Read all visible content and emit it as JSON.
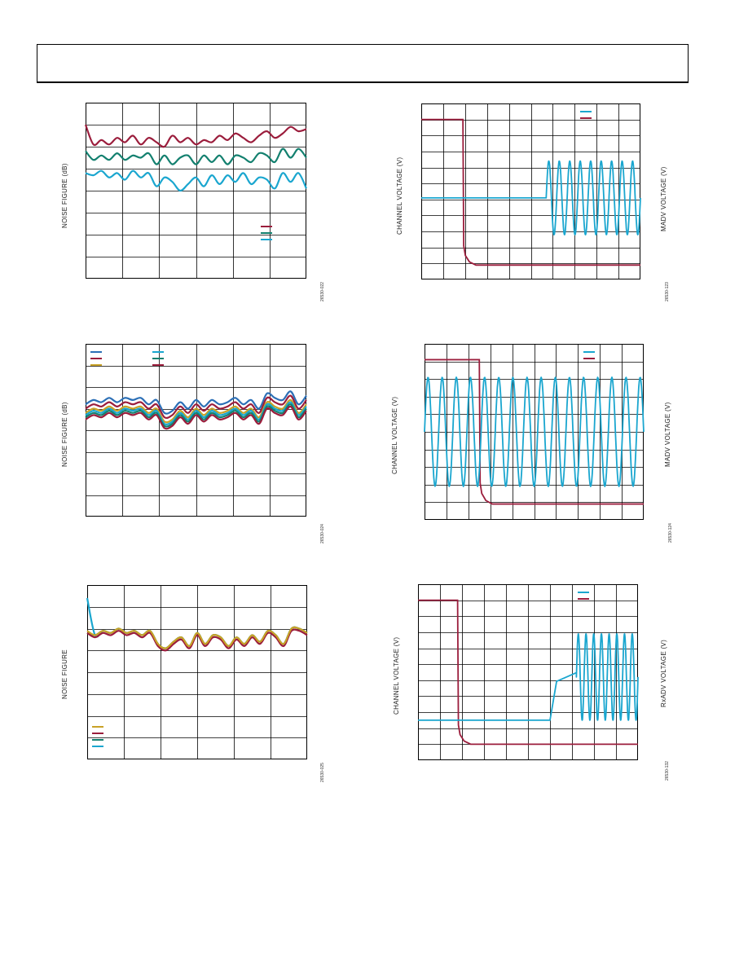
{
  "colors": {
    "maroon": "#9b1d3c",
    "teal": "#13806f",
    "cyan": "#1aa6cf",
    "blue": "#2b6fb6",
    "orange": "#c9a227",
    "grid": "#000000"
  },
  "page": {
    "header": ""
  },
  "chart_data": [
    {
      "id": "nf-top",
      "type": "line",
      "ylabel": "NOISE FIGURE (dB)",
      "figure_id": "26530-022",
      "grid": true,
      "gridlines": {
        "x": 6,
        "y": 8
      },
      "ylim": [
        0,
        8
      ],
      "xlim": [
        0,
        6
      ],
      "legend_placement": "bottom-right",
      "series": [
        {
          "color": "maroon",
          "values": [
            7.0,
            6.1,
            6.3,
            6.1,
            6.4,
            6.2,
            6.5,
            6.1,
            6.4,
            6.2,
            6.0,
            6.5,
            6.2,
            6.4,
            6.1,
            6.3,
            6.2,
            6.5,
            6.3,
            6.6,
            6.4,
            6.2,
            6.5,
            6.7,
            6.4,
            6.6,
            6.9,
            6.7,
            6.8
          ]
        },
        {
          "color": "teal",
          "values": [
            5.8,
            5.4,
            5.6,
            5.4,
            5.7,
            5.4,
            5.6,
            5.5,
            5.7,
            5.2,
            5.6,
            5.2,
            5.5,
            5.6,
            5.2,
            5.6,
            5.3,
            5.6,
            5.2,
            5.6,
            5.5,
            5.3,
            5.7,
            5.6,
            5.3,
            5.9,
            5.5,
            5.9,
            5.5
          ]
        },
        {
          "color": "cyan",
          "values": [
            4.8,
            4.7,
            4.9,
            4.6,
            4.8,
            4.5,
            4.9,
            4.6,
            4.8,
            4.2,
            4.6,
            4.4,
            4.0,
            4.3,
            4.6,
            4.2,
            4.7,
            4.3,
            4.7,
            4.4,
            4.8,
            4.3,
            4.6,
            4.5,
            4.1,
            4.8,
            4.4,
            4.8,
            4.1
          ]
        }
      ]
    },
    {
      "id": "nf-middle",
      "type": "line",
      "ylabel": "NOISE FIGURE (dB)",
      "figure_id": "26530-024",
      "grid": true,
      "gridlines": {
        "x": 6,
        "y": 8
      },
      "ylim": [
        0,
        8
      ],
      "xlim": [
        0,
        6
      ],
      "legend_placement": "top-left",
      "series": [
        {
          "color": "blue",
          "values": [
            5.2,
            5.4,
            5.3,
            5.5,
            5.3,
            5.5,
            5.4,
            5.5,
            5.2,
            5.4,
            4.8,
            4.9,
            5.3,
            5.0,
            5.4,
            5.1,
            5.4,
            5.2,
            5.3,
            5.5,
            5.2,
            5.4,
            5.0,
            5.7,
            5.5,
            5.4,
            5.8,
            5.2,
            5.6
          ]
        },
        {
          "color": "maroon",
          "values": [
            5.0,
            5.2,
            5.1,
            5.3,
            5.1,
            5.3,
            5.2,
            5.3,
            5.0,
            5.2,
            4.6,
            4.7,
            5.1,
            4.8,
            5.2,
            4.9,
            5.2,
            5.0,
            5.1,
            5.3,
            5.0,
            5.2,
            4.8,
            5.5,
            5.3,
            5.2,
            5.6,
            5.0,
            5.4
          ]
        },
        {
          "color": "orange",
          "values": [
            4.8,
            5.0,
            4.9,
            5.1,
            4.9,
            5.1,
            5.0,
            5.1,
            4.8,
            5.0,
            4.4,
            4.5,
            4.9,
            4.6,
            5.0,
            4.7,
            5.0,
            4.8,
            4.9,
            5.1,
            4.8,
            5.0,
            4.6,
            5.3,
            5.1,
            5.0,
            5.4,
            4.8,
            5.2
          ]
        },
        {
          "color": "cyan",
          "values": [
            4.7,
            4.9,
            4.8,
            5.0,
            4.8,
            5.0,
            4.9,
            5.0,
            4.7,
            4.9,
            4.3,
            4.4,
            4.8,
            4.5,
            4.9,
            4.6,
            4.9,
            4.7,
            4.8,
            5.0,
            4.7,
            4.9,
            4.5,
            5.2,
            5.0,
            4.9,
            5.3,
            4.7,
            5.1
          ]
        },
        {
          "color": "teal",
          "values": [
            4.6,
            4.8,
            4.7,
            4.9,
            4.7,
            4.9,
            4.8,
            4.9,
            4.6,
            4.8,
            4.2,
            4.3,
            4.7,
            4.4,
            4.8,
            4.5,
            4.8,
            4.6,
            4.7,
            4.9,
            4.6,
            4.8,
            4.4,
            5.1,
            4.9,
            4.8,
            5.2,
            4.6,
            5.0
          ]
        },
        {
          "color": "maroon",
          "values": [
            4.5,
            4.7,
            4.6,
            4.8,
            4.6,
            4.8,
            4.7,
            4.8,
            4.5,
            4.7,
            4.1,
            4.2,
            4.6,
            4.3,
            4.7,
            4.4,
            4.7,
            4.5,
            4.6,
            4.8,
            4.5,
            4.7,
            4.3,
            5.0,
            4.8,
            4.7,
            5.1,
            4.5,
            4.9
          ]
        }
      ]
    },
    {
      "id": "nf-bottom",
      "type": "line",
      "ylabel": "NOISE FIGURE",
      "figure_id": "26530-025",
      "grid": true,
      "gridlines": {
        "x": 6,
        "y": 8
      },
      "ylim": [
        0,
        8
      ],
      "xlim": [
        0,
        6
      ],
      "legend_placement": "bottom-left",
      "series": [
        {
          "color": "cyan",
          "values": [
            7.4,
            5.7,
            5.9,
            5.8,
            6.0,
            5.8,
            5.9,
            5.7,
            5.9,
            5.3,
            5.1,
            5.4,
            5.6,
            5.2,
            5.8,
            5.3,
            5.7,
            5.6,
            5.2,
            5.6,
            5.3,
            5.7,
            5.4,
            5.9,
            5.7,
            5.3,
            6.0,
            6.0,
            5.8
          ]
        },
        {
          "color": "teal",
          "values": [
            5.8,
            5.7,
            5.9,
            5.8,
            6.0,
            5.8,
            5.9,
            5.7,
            5.9,
            5.3,
            5.1,
            5.4,
            5.6,
            5.2,
            5.8,
            5.3,
            5.7,
            5.6,
            5.2,
            5.6,
            5.3,
            5.7,
            5.4,
            5.9,
            5.7,
            5.3,
            6.0,
            6.0,
            5.8
          ]
        },
        {
          "color": "maroon",
          "values": [
            5.8,
            5.6,
            5.8,
            5.7,
            5.9,
            5.7,
            5.8,
            5.6,
            5.8,
            5.2,
            5.0,
            5.3,
            5.5,
            5.1,
            5.7,
            5.2,
            5.6,
            5.5,
            5.1,
            5.5,
            5.2,
            5.6,
            5.3,
            5.8,
            5.6,
            5.2,
            5.9,
            5.9,
            5.7
          ]
        },
        {
          "color": "orange",
          "values": [
            5.9,
            5.7,
            5.9,
            5.8,
            6.0,
            5.8,
            5.9,
            5.7,
            5.9,
            5.3,
            5.1,
            5.4,
            5.6,
            5.2,
            5.8,
            5.3,
            5.7,
            5.6,
            5.2,
            5.6,
            5.3,
            5.7,
            5.4,
            5.9,
            5.7,
            5.3,
            6.0,
            6.0,
            5.8
          ]
        }
      ]
    },
    {
      "id": "scope-top",
      "type": "line",
      "ylabel": "CHANNEL VOLTAGE (V)",
      "ylabel_right": "MADV VOLTAGE (V)",
      "figure_id": "26530-123",
      "grid": true,
      "gridlines": {
        "x": 10,
        "y": 11
      },
      "legend_placement": "top-right",
      "step": {
        "color": "maroon",
        "high": 10.0,
        "low": 0.9,
        "edge": 0.19
      },
      "wave": {
        "color": "cyan",
        "baseline": 5.1,
        "start": 0.57,
        "end": 1.0,
        "cycles": 9,
        "amplitude": 2.3,
        "ramp": 0
      }
    },
    {
      "id": "scope-middle",
      "type": "line",
      "ylabel": "CHANNEL VOLTAGE (V)",
      "ylabel_right": "MADV VOLTAGE (V)",
      "figure_id": "26530-124",
      "grid": true,
      "gridlines": {
        "x": 10,
        "y": 10
      },
      "legend_placement": "top-right",
      "step": {
        "color": "maroon",
        "high": 9.1,
        "low": 0.9,
        "edge": 0.25
      },
      "wave": {
        "color": "cyan",
        "baseline": 5.0,
        "start": 0.0,
        "end": 1.0,
        "cycles": 15.5,
        "amplitude": 3.1,
        "ramp": 0
      }
    },
    {
      "id": "scope-bottom",
      "type": "line",
      "ylabel": "CHANNEL VOLTAGE (V)",
      "ylabel_right": "RxADV VOLTAGE (V)",
      "figure_id": "26530-132",
      "grid": true,
      "gridlines": {
        "x": 10,
        "y": 11
      },
      "legend_placement": "top-right",
      "step": {
        "color": "maroon",
        "high": 10.0,
        "low": 1.0,
        "edge": 0.18
      },
      "wave": {
        "color": "cyan",
        "baseline": 2.5,
        "start": 0.6,
        "end": 1.0,
        "cycles": 8,
        "amplitude": 2.7,
        "ramp": 0.12
      }
    }
  ]
}
